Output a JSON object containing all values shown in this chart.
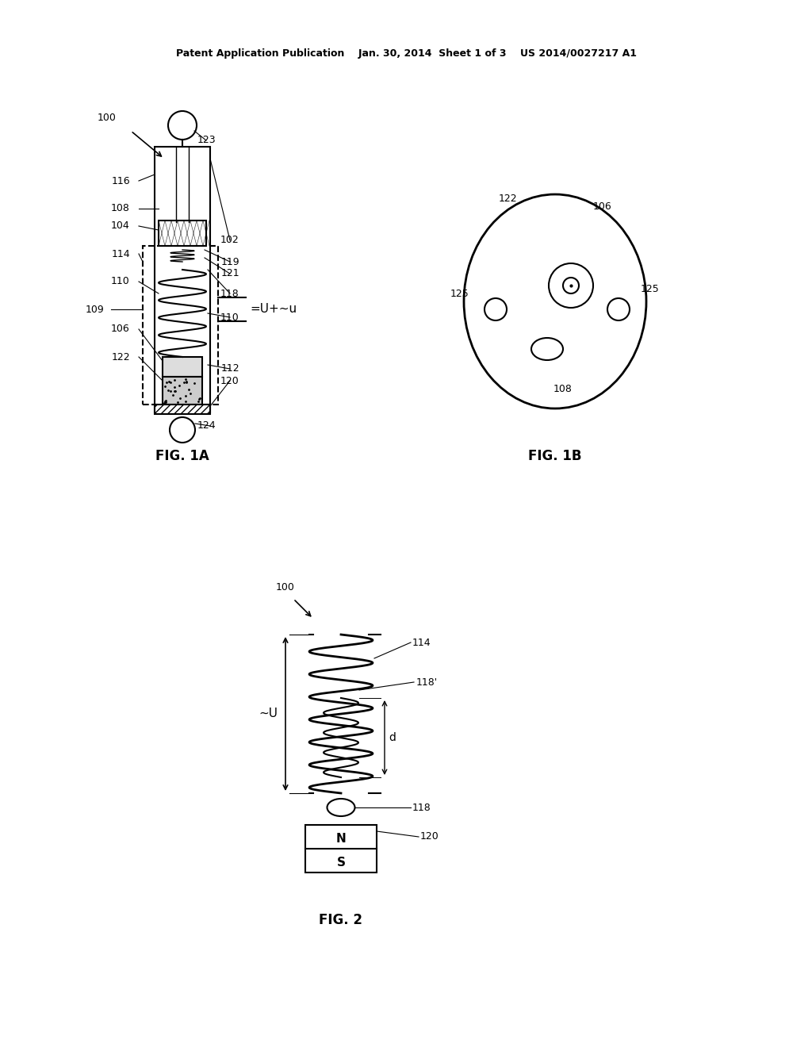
{
  "bg_color": "#ffffff",
  "header_text": "Patent Application Publication    Jan. 30, 2014  Sheet 1 of 3    US 2014/0027217 A1",
  "fig1a_label": "FIG. 1A",
  "fig1b_label": "FIG. 1B",
  "fig2_label": "FIG. 2"
}
